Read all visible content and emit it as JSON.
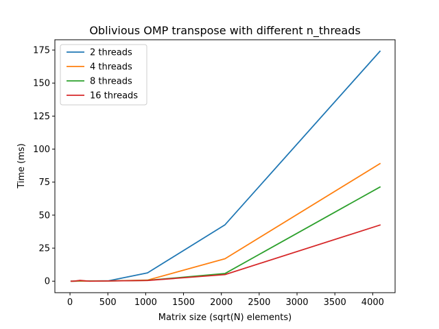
{
  "chart_data": {
    "type": "line",
    "title": "Oblivious OMP transpose with different n_threads",
    "xlabel": "Matrix size (sqrt(N) elements)",
    "ylabel": "Time (ms)",
    "xlim": [
      -200,
      4296
    ],
    "ylim": [
      -8.7,
      182.8
    ],
    "xticks": [
      0,
      500,
      1000,
      1500,
      2000,
      2500,
      3000,
      3500,
      4000
    ],
    "yticks": [
      0,
      25,
      50,
      75,
      100,
      125,
      150,
      175
    ],
    "legend_position": "top-left",
    "grid": false,
    "x": [
      16,
      32,
      64,
      128,
      256,
      512,
      1024,
      2048,
      4096
    ],
    "series": [
      {
        "name": "2 threads",
        "color": "#1f77b4",
        "values": [
          0.0,
          0.0,
          0.0,
          0.1,
          0.1,
          0.3,
          6.3,
          42.7,
          174.1
        ]
      },
      {
        "name": "4 threads",
        "color": "#ff7f0e",
        "values": [
          0.0,
          0.0,
          0.0,
          0.1,
          0.1,
          0.2,
          0.8,
          17.0,
          89.0
        ]
      },
      {
        "name": "8 threads",
        "color": "#2ca02c",
        "values": [
          0.0,
          0.0,
          0.1,
          0.3,
          0.1,
          0.2,
          0.6,
          5.8,
          71.3
        ]
      },
      {
        "name": "16 threads",
        "color": "#d62728",
        "values": [
          0.0,
          0.0,
          0.1,
          0.6,
          0.0,
          0.2,
          0.5,
          5.0,
          42.5
        ]
      }
    ]
  }
}
